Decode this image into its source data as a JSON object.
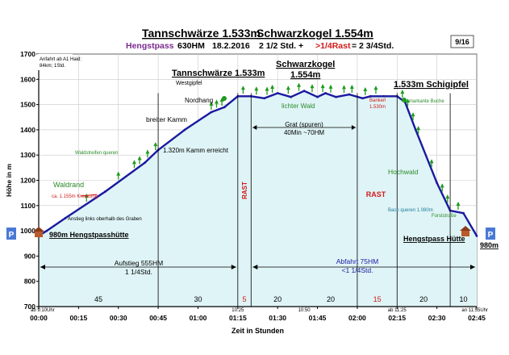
{
  "header": {
    "title_left": "Tannschwärze 1.533m",
    "title_right": "Schwarzkogel 1.554m",
    "start_name": "Hengstpass",
    "start_alt": "630HM",
    "date": "18.2.2016",
    "time_formula_a": "2 1/2 Std. +",
    "time_formula_rest": ">1/4Rast",
    "time_formula_b": "= 2 3/4Std.",
    "page_badge": "9/16"
  },
  "chart_data": {
    "type": "area",
    "title": "Tannschwärze 1.533m Schwarzkogel 1.554m",
    "xlabel": "Zeit in Stunden",
    "ylabel": "Höhe in m",
    "xlim": [
      0,
      165
    ],
    "ylim": [
      700,
      1700
    ],
    "x_ticks": [
      {
        "v": 0,
        "label": "00:00"
      },
      {
        "v": 15,
        "label": "00:15"
      },
      {
        "v": 30,
        "label": "00:30"
      },
      {
        "v": 45,
        "label": "00:45"
      },
      {
        "v": 60,
        "label": "01:00"
      },
      {
        "v": 75,
        "label": "01:15"
      },
      {
        "v": 90,
        "label": "01:30"
      },
      {
        "v": 105,
        "label": "01:45"
      },
      {
        "v": 120,
        "label": "02:00"
      },
      {
        "v": 135,
        "label": "02:15"
      },
      {
        "v": 150,
        "label": "02:30"
      },
      {
        "v": 165,
        "label": "02:45"
      }
    ],
    "y_ticks": [
      700,
      800,
      900,
      1000,
      1100,
      1200,
      1300,
      1400,
      1500,
      1600,
      1700
    ],
    "x": [
      0,
      3,
      10,
      25,
      40,
      45,
      55,
      65,
      70,
      75,
      80,
      85,
      90,
      95,
      100,
      105,
      108,
      112,
      117,
      122,
      125,
      130,
      135,
      138,
      142,
      150,
      155,
      160,
      165
    ],
    "y": [
      980,
      1000,
      1050,
      1155,
      1270,
      1320,
      1400,
      1470,
      1490,
      1533,
      1533,
      1525,
      1545,
      1530,
      1554,
      1530,
      1545,
      1530,
      1540,
      1525,
      1533,
      1533,
      1533,
      1510,
      1400,
      1190,
      1080,
      1070,
      980
    ],
    "segments": [
      {
        "x": [
          0,
          45
        ],
        "label": "45"
      },
      {
        "x": [
          45,
          75
        ],
        "label": "30"
      },
      {
        "x": [
          75,
          80
        ],
        "label": "5",
        "rest": true
      },
      {
        "x": [
          80,
          100
        ],
        "label": "20"
      },
      {
        "x": [
          100,
          120
        ],
        "label": "20"
      },
      {
        "x": [
          120,
          135
        ],
        "label": "15",
        "rest": true
      },
      {
        "x": [
          135,
          155
        ],
        "label": "20"
      },
      {
        "x": [
          155,
          165
        ],
        "label": "10"
      }
    ],
    "time_notes": [
      {
        "x": 0,
        "label": "ab 9:10Uhr"
      },
      {
        "x": 75,
        "label": "10:25"
      },
      {
        "x": 100,
        "label": "10:50"
      },
      {
        "x": 135,
        "label": "ab 11:25"
      },
      {
        "x": 165,
        "label": "an 11:55Uhr"
      }
    ],
    "annotations": {
      "top_tannschwaerze": "Tannschwärze 1.533m",
      "westgipfel": "Westgipfel",
      "schwarzkogel_a": "Schwarzkogel",
      "schwarzkogel_b": "1.554m",
      "schigipfel": "1.533m Schigipfel",
      "nordhang": "Nordhang",
      "lichter_wald": "lichter Wald",
      "breiter_kamm": "breiter Kamm",
      "kamm_erreicht": "1.320m Kamm erreicht",
      "waldstreifen": "Waldstreifen queren",
      "waldrand": "Waldrand",
      "kreuzung": "ca. 1.155m Kreuzung",
      "anstieg": "Anstieg links oberhalb des Graben",
      "hengstpasshuette": "980m Hengstpasshütte",
      "hengstpass_huette": "Hengstpass Hütte",
      "alt_980": "980m",
      "bankerl_a": "Bankerl",
      "bankerl_b": "1.530m",
      "markante_buche": "markante Buche",
      "hochwald": "Hochwald",
      "bach_queren": "Bach queren 1.080m",
      "forststrasse": "Forststraße",
      "grat_a": "Grat (spuren)",
      "grat_b": "40Min ~70HM",
      "rast": "RAST",
      "aufstieg_a": "Aufstieg 555HM",
      "aufstieg_b": "1 1/4Std.",
      "abfahrt_a": "Abfahrt 75HM",
      "abfahrt_b": "<1 1/4Std.",
      "anfahrt_a": "Anfahrt ab A1 Haid:",
      "anfahrt_b": "84km; 1Std.",
      "parking": "P"
    }
  },
  "colors": {
    "fill": "#dff4f6",
    "line": "#1a1aa0",
    "grid": "#c9c9c9",
    "tree": "#1f9a1f",
    "rest": "#d11a1a",
    "purple": "#7a2a8f",
    "parking_bg": "#4a78d6",
    "waldgreen": "#2a8a2a",
    "teal": "#1d7d9a"
  }
}
